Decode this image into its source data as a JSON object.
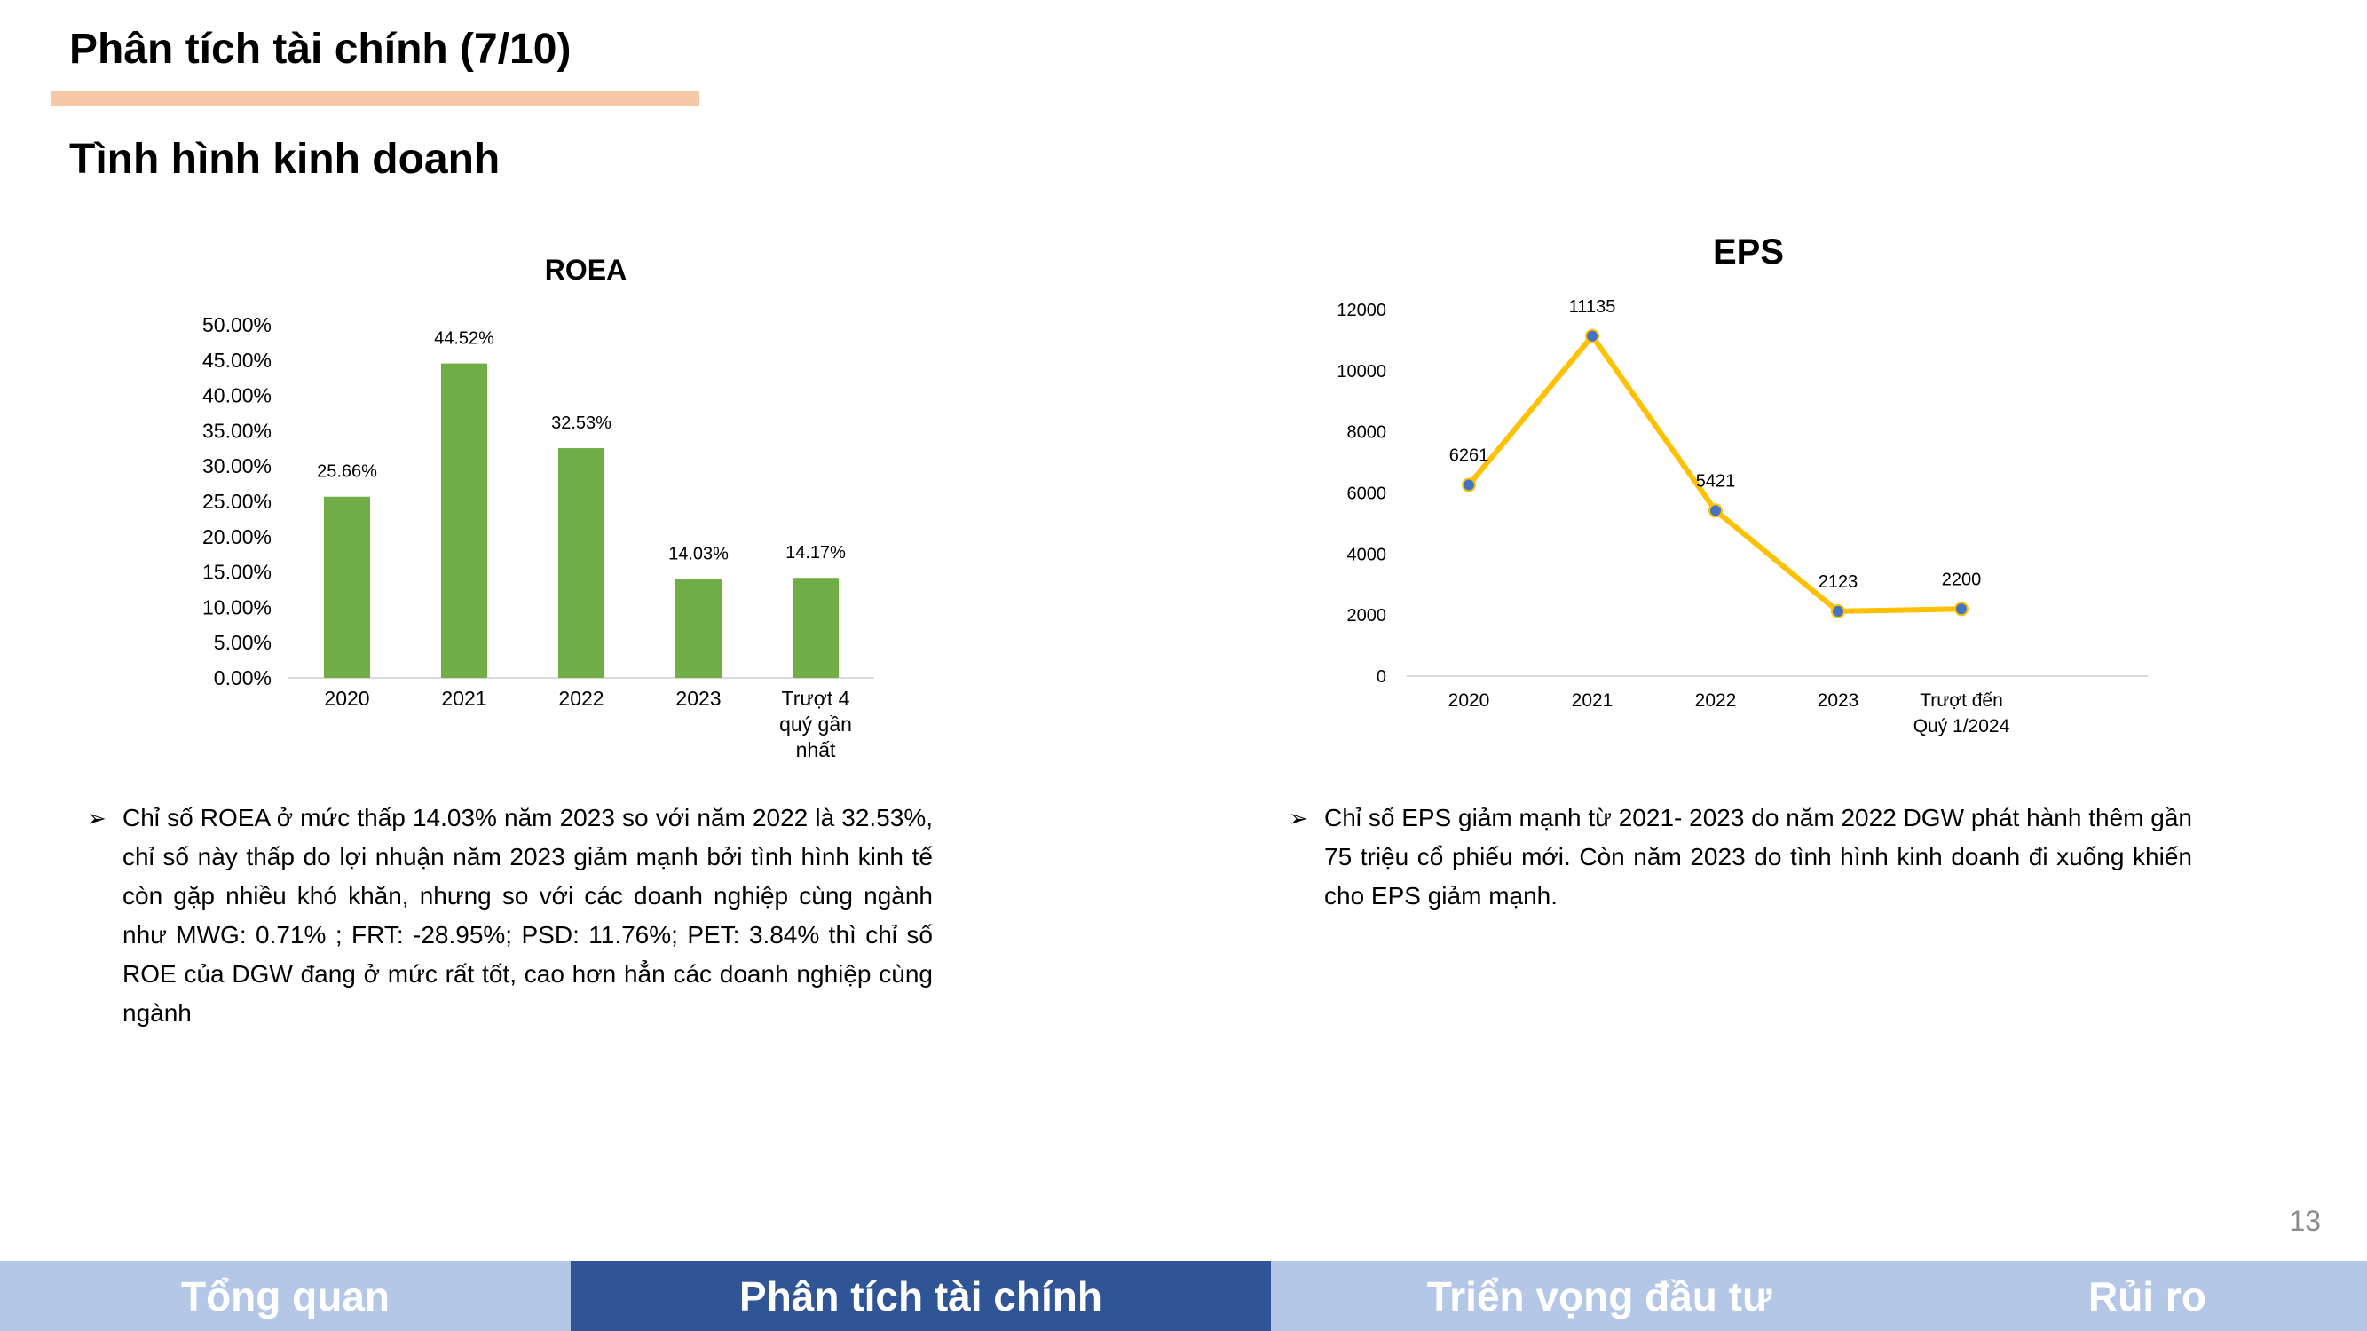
{
  "header": {
    "title": "Phân tích tài chính (7/10)",
    "subtitle": "Tình hình kinh doanh"
  },
  "colors": {
    "bar": "#70ad47",
    "line": "#ffc000",
    "marker": "#4472c4",
    "title_rule": "#f6c8a6",
    "nav_active": "#2f5597",
    "nav_inactive": "#b4c7e7"
  },
  "chart_data": [
    {
      "type": "bar",
      "title": "ROEA",
      "categories": [
        "2020",
        "2021",
        "2022",
        "2023",
        "Trượt 4 quý gần nhất"
      ],
      "category_lines": [
        [
          "2020"
        ],
        [
          "2021"
        ],
        [
          "2022"
        ],
        [
          "2023"
        ],
        [
          "Trượt 4",
          "quý gần",
          "nhất"
        ]
      ],
      "values": [
        25.66,
        44.52,
        32.53,
        14.03,
        14.17
      ],
      "data_labels": [
        "25.66%",
        "44.52%",
        "32.53%",
        "14.03%",
        "14.17%"
      ],
      "yticks": [
        "0.00%",
        "5.00%",
        "10.00%",
        "15.00%",
        "20.00%",
        "25.00%",
        "30.00%",
        "35.00%",
        "40.00%",
        "45.00%",
        "50.00%"
      ],
      "ylim": [
        0,
        50
      ],
      "grid": false
    },
    {
      "type": "line",
      "title": "EPS",
      "categories": [
        "2020",
        "2021",
        "2022",
        "2023",
        "Trượt đến Quý 1/2024"
      ],
      "category_lines": [
        [
          "2020"
        ],
        [
          "2021"
        ],
        [
          "2022"
        ],
        [
          "2023"
        ],
        [
          "Trượt đến",
          "Quý 1/2024"
        ]
      ],
      "values": [
        6261,
        11135,
        5421,
        2123,
        2200
      ],
      "data_labels": [
        "6261",
        "11135",
        "5421",
        "2123",
        "2200"
      ],
      "yticks": [
        "0",
        "2000",
        "4000",
        "6000",
        "8000",
        "10000",
        "12000"
      ],
      "ylim": [
        0,
        12000
      ],
      "grid": false
    }
  ],
  "notes": {
    "roea": "Chỉ số ROEA ở mức thấp 14.03% năm 2023 so với năm 2022 là 32.53%, chỉ số này thấp do lợi nhuận năm 2023 giảm mạnh bởi tình hình kinh tế còn gặp nhiều khó khăn, nhưng so với các doanh nghiệp cùng ngành như MWG: 0.71% ; FRT: -28.95%; PSD: 11.76%; PET: 3.84% thì chỉ số ROE của DGW đang ở mức rất tốt, cao hơn hẳn các doanh nghiệp cùng ngành",
    "eps": "Chỉ số EPS giảm mạnh từ 2021- 2023 do năm 2022 DGW phát hành thêm gần 75 triệu cổ phiếu mới. Còn năm 2023 do tình hình kinh doanh đi xuống khiến cho EPS giảm mạnh.",
    "bullet_glyph": "➢"
  },
  "page_number": "13",
  "nav": {
    "items": [
      {
        "label": "Tổng quan"
      },
      {
        "label": "Phân tích tài chính"
      },
      {
        "label": "Triển vọng đầu tư"
      },
      {
        "label": "Rủi ro"
      }
    ]
  }
}
